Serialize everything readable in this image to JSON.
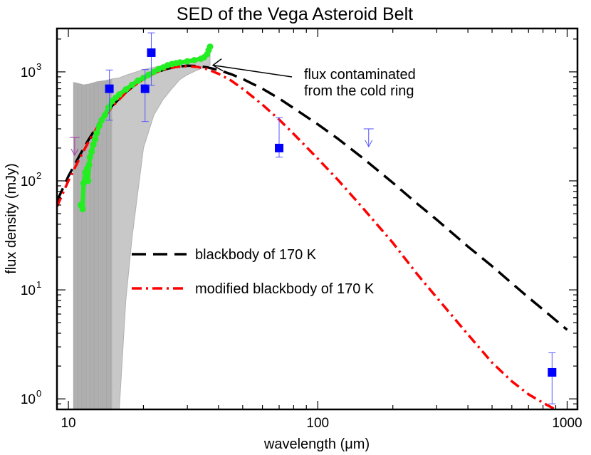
{
  "chart_data": {
    "type": "scatter",
    "title": "SED of the Vega Asteroid Belt",
    "xlabel": "wavelength (μm)",
    "ylabel": "flux density (mJy)",
    "xscale": "log",
    "yscale": "log",
    "xlim": [
      9,
      1100
    ],
    "ylim": [
      0.8,
      2500
    ],
    "x_ticks": [
      {
        "value": 10,
        "label": "10"
      },
      {
        "value": 100,
        "label": "100"
      },
      {
        "value": 1000,
        "label": "1000"
      }
    ],
    "y_ticks": [
      {
        "value": 1,
        "base": "10",
        "exp": "0"
      },
      {
        "value": 10,
        "base": "10",
        "exp": "1"
      },
      {
        "value": 100,
        "base": "10",
        "exp": "2"
      },
      {
        "value": 1000,
        "base": "10",
        "exp": "3"
      }
    ],
    "grid": false,
    "legend_position": "center",
    "colors": {
      "blackbody": "#000000",
      "modified_blackbody": "#ff0000",
      "photometry": "#0000ff",
      "spectrum": "#22ee22",
      "spectrum_error": "#aaaaaa",
      "upper_limit_blue": "#5555ff",
      "upper_limit_purple": "#aa33aa"
    },
    "series": [
      {
        "name": "blackbody of 170 K",
        "style": "dashed",
        "x": [
          9,
          10,
          11,
          12,
          13,
          14,
          15,
          17,
          19,
          21,
          23,
          25,
          27,
          30,
          33,
          36,
          40,
          45,
          50,
          60,
          70,
          80,
          100,
          120,
          150,
          200,
          250,
          300,
          400,
          500,
          600,
          700,
          800,
          1000
        ],
        "y": [
          65,
          110,
          165,
          235,
          315,
          400,
          490,
          650,
          800,
          920,
          1010,
          1070,
          1110,
          1140,
          1130,
          1100,
          1040,
          950,
          860,
          700,
          570,
          465,
          330,
          245,
          165,
          96,
          62,
          44,
          25,
          16.5,
          11.5,
          8.5,
          6.6,
          4.3
        ]
      },
      {
        "name": "modified blackbody of 170 K",
        "style": "dash-dot",
        "x": [
          9,
          10,
          11,
          12,
          13,
          14,
          15,
          17,
          19,
          21,
          23,
          25,
          27,
          30,
          33,
          36,
          40,
          45,
          50,
          60,
          70,
          80,
          100,
          120,
          150,
          200,
          250,
          300,
          400,
          500,
          600,
          700,
          800,
          1000
        ],
        "y": [
          58,
          100,
          155,
          225,
          305,
          390,
          480,
          645,
          795,
          920,
          1010,
          1070,
          1110,
          1130,
          1110,
          1060,
          960,
          830,
          700,
          500,
          365,
          270,
          160,
          103,
          58,
          27,
          14,
          8.5,
          3.9,
          2.15,
          1.45,
          1.1,
          0.92,
          0.7
        ]
      }
    ],
    "photometry": {
      "name": "photometry",
      "points": [
        {
          "x": 14.6,
          "y": 700,
          "ylo": 360,
          "yhi": 1040
        },
        {
          "x": 20.3,
          "y": 700,
          "ylo": 350,
          "yhi": 1050
        },
        {
          "x": 21.5,
          "y": 1500,
          "ylo": 750,
          "yhi": 2280
        },
        {
          "x": 70,
          "y": 200,
          "ylo": 165,
          "yhi": 380
        },
        {
          "x": 870,
          "y": 1.75,
          "ylo": 0.9,
          "yhi": 2.65
        }
      ]
    },
    "upper_limits": [
      {
        "x": 160,
        "y": 300,
        "color": "blue"
      },
      {
        "x": 10.6,
        "y": 250,
        "color": "purple"
      }
    ],
    "spectrum": {
      "name": "spectrum",
      "x": [
        11.2,
        11.4,
        11.5,
        11.7,
        11.8,
        11.9,
        12.0,
        12.1,
        12.2,
        12.4,
        12.6,
        12.8,
        13.0,
        13.3,
        13.6,
        14.0,
        14.5,
        15.0,
        15.5,
        16.0,
        17.0,
        18.0,
        19.0,
        20.0,
        21.0,
        22.0,
        23.0,
        24.0,
        25.0,
        26.0,
        27.0,
        28.0,
        30.0,
        32.0,
        34.0,
        35.0,
        36.0,
        36.5,
        37.0
      ],
      "y": [
        60,
        55,
        95,
        120,
        115,
        130,
        100,
        140,
        165,
        185,
        215,
        240,
        275,
        320,
        360,
        400,
        470,
        540,
        580,
        620,
        690,
        760,
        830,
        880,
        940,
        1000,
        1060,
        1100,
        1150,
        1180,
        1200,
        1220,
        1250,
        1280,
        1320,
        1360,
        1450,
        1580,
        1700
      ]
    },
    "spectrum_error_band": {
      "x": [
        10.5,
        11.0,
        11.5,
        12.0,
        12.5,
        13.0,
        14.0,
        15.0,
        16.0,
        17.0,
        18.0,
        20.0,
        22.0,
        24.0,
        26.0,
        28.0,
        30.0,
        32.0,
        34.0,
        36.0,
        37.0
      ],
      "upper": [
        800,
        780,
        760,
        770,
        790,
        810,
        830,
        860,
        880,
        930,
        970,
        1050,
        1100,
        1150,
        1200,
        1240,
        1290,
        1330,
        1380,
        1440,
        1480
      ],
      "lower": [
        0.8,
        0.8,
        0.8,
        0.8,
        0.8,
        0.8,
        0.8,
        0.8,
        0.8,
        8,
        30,
        200,
        400,
        560,
        700,
        850,
        940,
        1010,
        1070,
        1120,
        1150
      ],
      "floor_x_max": 15.0
    },
    "legend": [
      {
        "label": "blackbody of 170 K",
        "style": "dashed",
        "color": "#000000"
      },
      {
        "label": "modified blackbody of 170 K",
        "style": "dash-dot",
        "color": "#ff0000"
      }
    ],
    "annotations": [
      {
        "lines": [
          "flux contaminated",
          "from the cold ring"
        ],
        "arrow_to": {
          "x": 38,
          "y": 1150
        }
      }
    ]
  }
}
